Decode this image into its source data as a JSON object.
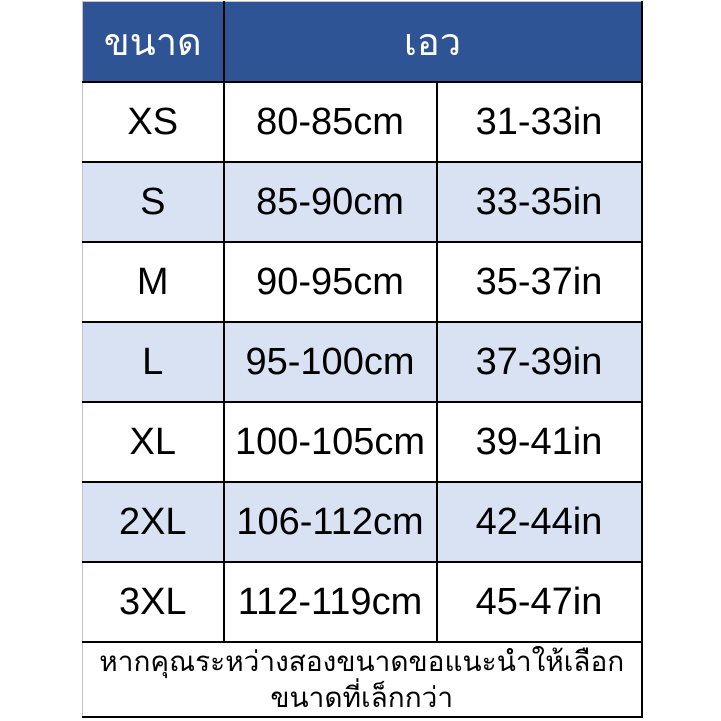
{
  "table": {
    "header": {
      "size_label": "ขนาด",
      "waist_label": "เอว"
    },
    "rows": [
      {
        "size": "XS",
        "cm": "80-85cm",
        "inch": "31-33in"
      },
      {
        "size": "S",
        "cm": "85-90cm",
        "inch": "33-35in"
      },
      {
        "size": "M",
        "cm": "90-95cm",
        "inch": "35-37in"
      },
      {
        "size": "L",
        "cm": "95-100cm",
        "inch": "37-39in"
      },
      {
        "size": "XL",
        "cm": "100-105cm",
        "inch": "39-41in"
      },
      {
        "size": "2XL",
        "cm": "106-112cm",
        "inch": "42-44in"
      },
      {
        "size": "3XL",
        "cm": "112-119cm",
        "inch": "45-47in"
      }
    ],
    "footer": {
      "line1": "หากคุณระหว่างสองขนาดขอแนะนำให้เลือก",
      "line2": "ขนาดที่เล็กกว่า"
    },
    "colors": {
      "header_bg": "#2F5496",
      "header_text": "#FFFFFF",
      "alt_row_bg": "#D9E2F3",
      "row_bg": "#FFFFFF",
      "border": "#000000",
      "text": "#000000"
    }
  }
}
